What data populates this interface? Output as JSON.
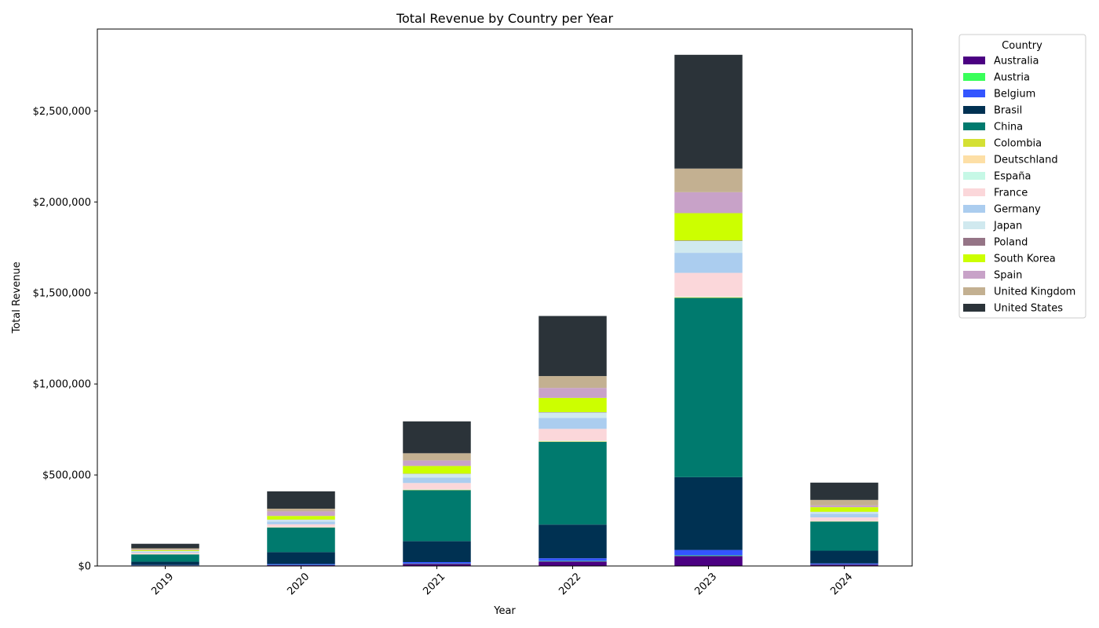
{
  "chart_data": {
    "type": "bar",
    "stacked": true,
    "title": "Total Revenue by Country per Year",
    "xlabel": "Year",
    "ylabel": "Total Revenue",
    "categories": [
      "2019",
      "2020",
      "2021",
      "2022",
      "2023",
      "2024"
    ],
    "ylim": [
      0,
      2950000
    ],
    "yticks": [
      0,
      500000,
      1000000,
      1500000,
      2000000,
      2500000
    ],
    "ytick_labels": [
      "$0",
      "$500,000",
      "$1,000,000",
      "$1,500,000",
      "$2,000,000",
      "$2,500,000"
    ],
    "legend_title": "Country",
    "legend_position": "outside-right-top",
    "grid": false,
    "series": [
      {
        "name": "Australia",
        "color": "#4b0082",
        "values": [
          3000,
          5000,
          12000,
          25000,
          55000,
          8000
        ]
      },
      {
        "name": "Austria",
        "color": "#39ff5a",
        "values": [
          500,
          1000,
          1500,
          2500,
          3000,
          1000
        ]
      },
      {
        "name": "Belgium",
        "color": "#3355ff",
        "values": [
          2000,
          5000,
          8000,
          15000,
          30000,
          5000
        ]
      },
      {
        "name": "Brasil",
        "color": "#003152",
        "values": [
          18000,
          65000,
          115000,
          185000,
          400000,
          70000
        ]
      },
      {
        "name": "China",
        "color": "#007a6e",
        "values": [
          40000,
          135000,
          280000,
          455000,
          985000,
          160000
        ]
      },
      {
        "name": "Colombia",
        "color": "#d4e033",
        "values": [
          500,
          1000,
          1500,
          2000,
          2500,
          1000
        ]
      },
      {
        "name": "Deutschland",
        "color": "#fddfa6",
        "values": [
          500,
          1000,
          1500,
          2000,
          2500,
          1000
        ]
      },
      {
        "name": "España",
        "color": "#c6f8e6",
        "values": [
          500,
          1000,
          1500,
          2000,
          2500,
          1000
        ]
      },
      {
        "name": "France",
        "color": "#fbd7da",
        "values": [
          8000,
          15000,
          35000,
          65000,
          130000,
          20000
        ]
      },
      {
        "name": "Germany",
        "color": "#abcdef",
        "values": [
          5000,
          15000,
          30000,
          60000,
          110000,
          20000
        ]
      },
      {
        "name": "Japan",
        "color": "#d0e9ef",
        "values": [
          4000,
          10000,
          20000,
          30000,
          65000,
          10000
        ]
      },
      {
        "name": "Poland",
        "color": "#957486",
        "values": [
          500,
          1000,
          1500,
          2000,
          3000,
          1000
        ]
      },
      {
        "name": "South Korea",
        "color": "#ccff00",
        "values": [
          5000,
          20000,
          42000,
          78000,
          150000,
          25000
        ]
      },
      {
        "name": "Spain",
        "color": "#c8a2c8",
        "values": [
          3500,
          25000,
          30000,
          55000,
          115000,
          10000
        ]
      },
      {
        "name": "United Kingdom",
        "color": "#c3b091",
        "values": [
          6000,
          15000,
          40000,
          65000,
          130000,
          30000
        ]
      },
      {
        "name": "United States",
        "color": "#2b3339",
        "values": [
          25000,
          95000,
          175000,
          330000,
          625000,
          95000
        ]
      }
    ]
  }
}
